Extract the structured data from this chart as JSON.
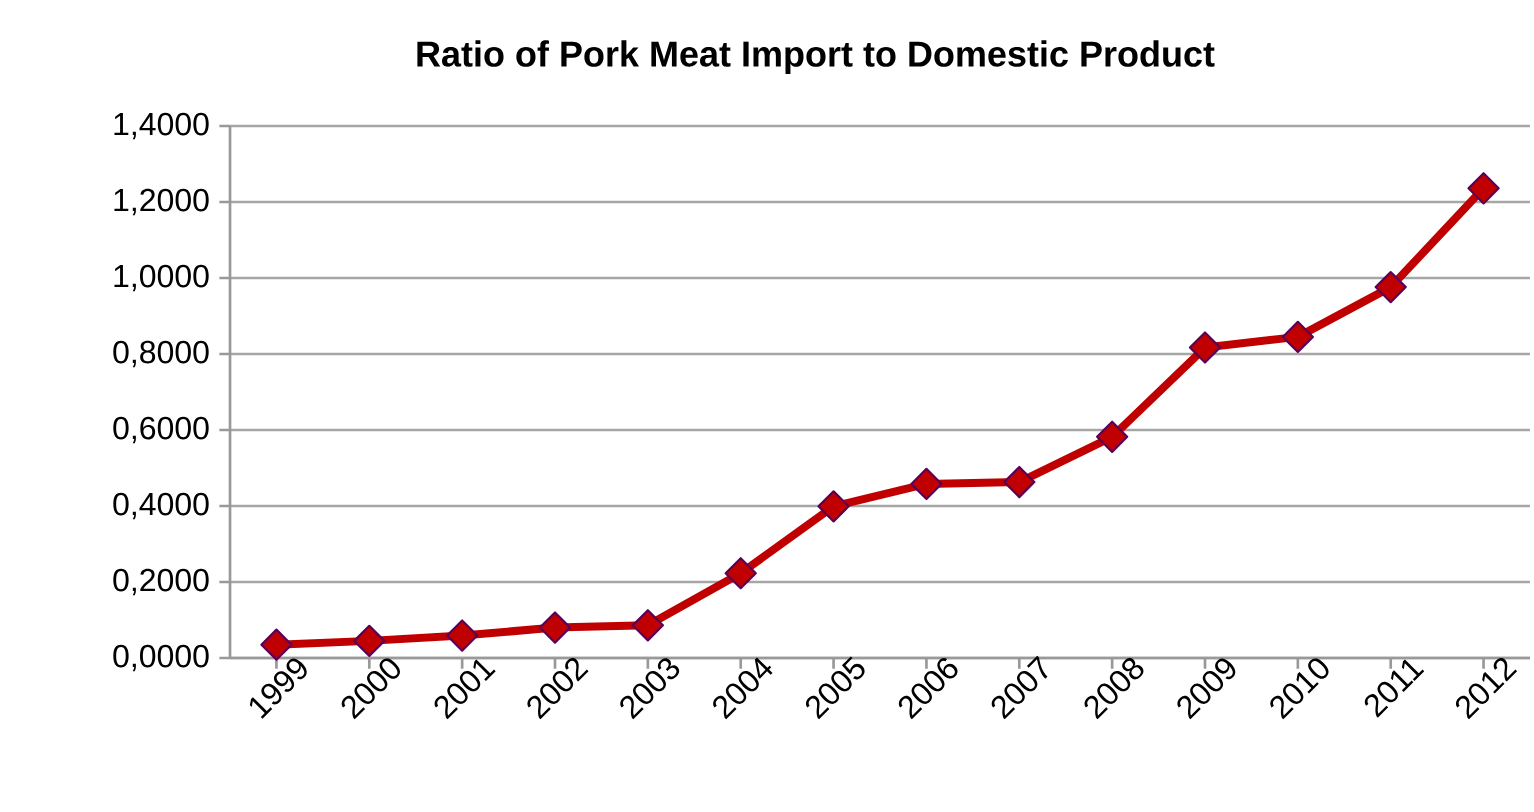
{
  "chart_data": {
    "type": "line",
    "title": "Ratio of Pork Meat Import to Domestic Product",
    "categories": [
      "1999",
      "2000",
      "2001",
      "2002",
      "2003",
      "2004",
      "2005",
      "2006",
      "2007",
      "2008",
      "2009",
      "2010",
      "2011",
      "2012"
    ],
    "series": [
      {
        "color": "#c00000",
        "values": [
          0.035,
          0.045,
          0.059,
          0.08,
          0.086,
          0.223,
          0.399,
          0.458,
          0.463,
          0.582,
          0.817,
          0.845,
          0.976,
          1.236
        ]
      }
    ],
    "ylim": [
      0,
      1.4
    ],
    "yticks": [
      {
        "value": 0,
        "label": "0,0000"
      },
      {
        "value": 0.2,
        "label": "0,2000"
      },
      {
        "value": 0.4,
        "label": "0,4000"
      },
      {
        "value": 0.6,
        "label": "0,6000"
      },
      {
        "value": 0.8,
        "label": "0,8000"
      },
      {
        "value": 1.0,
        "label": "1,0000"
      },
      {
        "value": 1.2,
        "label": "1,2000"
      },
      {
        "value": 1.4,
        "label": "1,4000"
      }
    ],
    "grid": "y",
    "marker": "diamond",
    "line_style": "solid"
  }
}
